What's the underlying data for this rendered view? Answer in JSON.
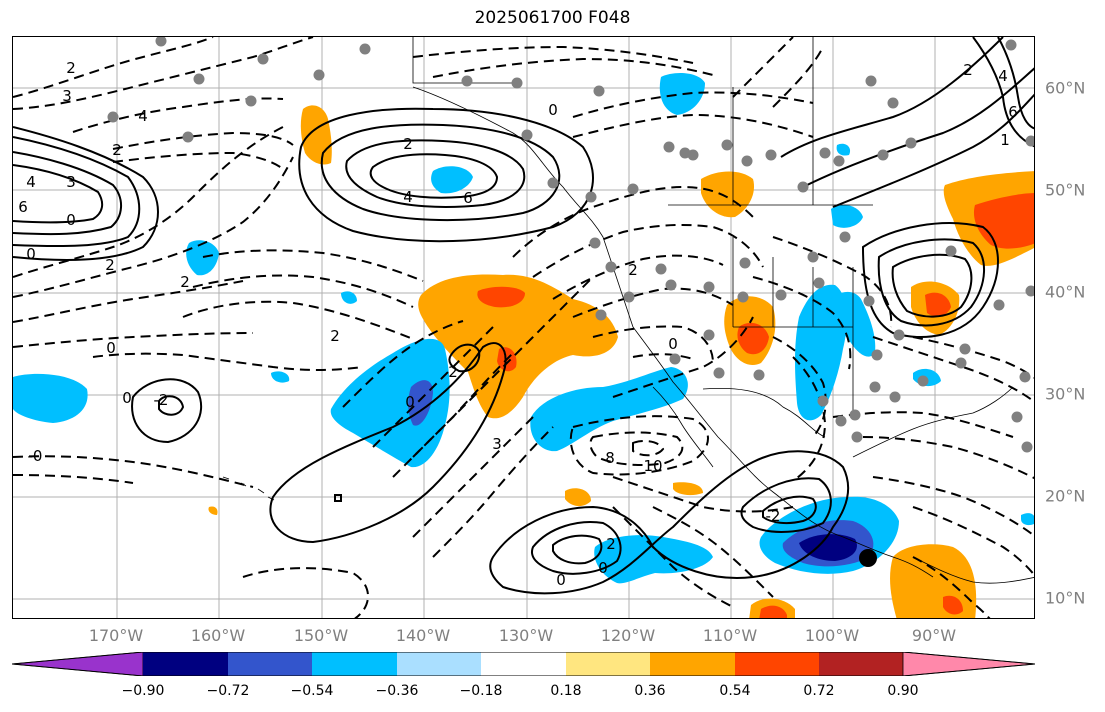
{
  "title": "2025061700 F048",
  "lon_labels": [
    "170°W",
    "160°W",
    "150°W",
    "140°W",
    "130°W",
    "120°W",
    "110°W",
    "100°W",
    "90°W"
  ],
  "lat_labels": [
    "60°N",
    "50°N",
    "40°N",
    "30°N",
    "20°N",
    "10°N"
  ],
  "colorbar": {
    "tick_labels": [
      "−0.90",
      "−0.72",
      "−0.54",
      "−0.36",
      "−0.18",
      "0.18",
      "0.36",
      "0.54",
      "0.72",
      "0.90"
    ],
    "colors": [
      "#9933cc",
      "#000080",
      "#3355cc",
      "#00bfff",
      "#aadfff",
      "#ffffff",
      "#ffe680",
      "#ffa500",
      "#ff4500",
      "#b22222",
      "#ff88aa"
    ]
  },
  "contour_labels": [
    "2",
    "3",
    "4",
    "2",
    "3",
    "4",
    "6",
    "0",
    "2",
    "4",
    "6",
    "0",
    "2",
    "0",
    "2",
    "0",
    "-0",
    "2",
    "0",
    "-2",
    "0",
    "2",
    "0",
    "2",
    "3",
    "8",
    "10",
    "6",
    "4",
    "2",
    "1",
    "0",
    "2",
    "0",
    "-2"
  ],
  "marker_colors": {
    "station": "#808080",
    "storm": "#000000"
  }
}
